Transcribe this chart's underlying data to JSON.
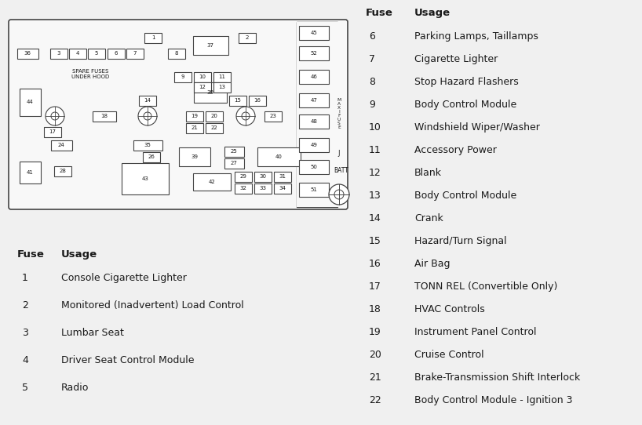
{
  "background_color": "#f0f0f0",
  "left_table_header": [
    "Fuse",
    "Usage"
  ],
  "left_table": [
    [
      "1",
      "Console Cigarette Lighter"
    ],
    [
      "2",
      "Monitored (Inadvertent) Load Control"
    ],
    [
      "3",
      "Lumbar Seat"
    ],
    [
      "4",
      "Driver Seat Control Module"
    ],
    [
      "5",
      "Radio"
    ]
  ],
  "right_table_header": [
    "Fuse",
    "Usage"
  ],
  "right_table": [
    [
      "6",
      "Parking Lamps, Taillamps"
    ],
    [
      "7",
      "Cigarette Lighter"
    ],
    [
      "8",
      "Stop Hazard Flashers"
    ],
    [
      "9",
      "Body Control Module"
    ],
    [
      "10",
      "Windshield Wiper/Washer"
    ],
    [
      "11",
      "Accessory Power"
    ],
    [
      "12",
      "Blank"
    ],
    [
      "13",
      "Body Control Module"
    ],
    [
      "14",
      "Crank"
    ],
    [
      "15",
      "Hazard/Turn Signal"
    ],
    [
      "16",
      "Air Bag"
    ],
    [
      "17",
      "TONN REL (Convertible Only)"
    ],
    [
      "18",
      "HVAC Controls"
    ],
    [
      "19",
      "Instrument Panel Control"
    ],
    [
      "20",
      "Cruise Control"
    ],
    [
      "21",
      "Brake-Transmission Shift Interlock"
    ],
    [
      "22",
      "Body Control Module - Ignition 3"
    ]
  ],
  "text_color": "#1a1a1a",
  "line_color": "#444444",
  "box_fill": "#ffffff",
  "diagram_bg": "#f8f8f8",
  "fuse_fontsize": 5.0,
  "table_header_fontsize": 9.5,
  "table_body_fontsize": 9.0
}
